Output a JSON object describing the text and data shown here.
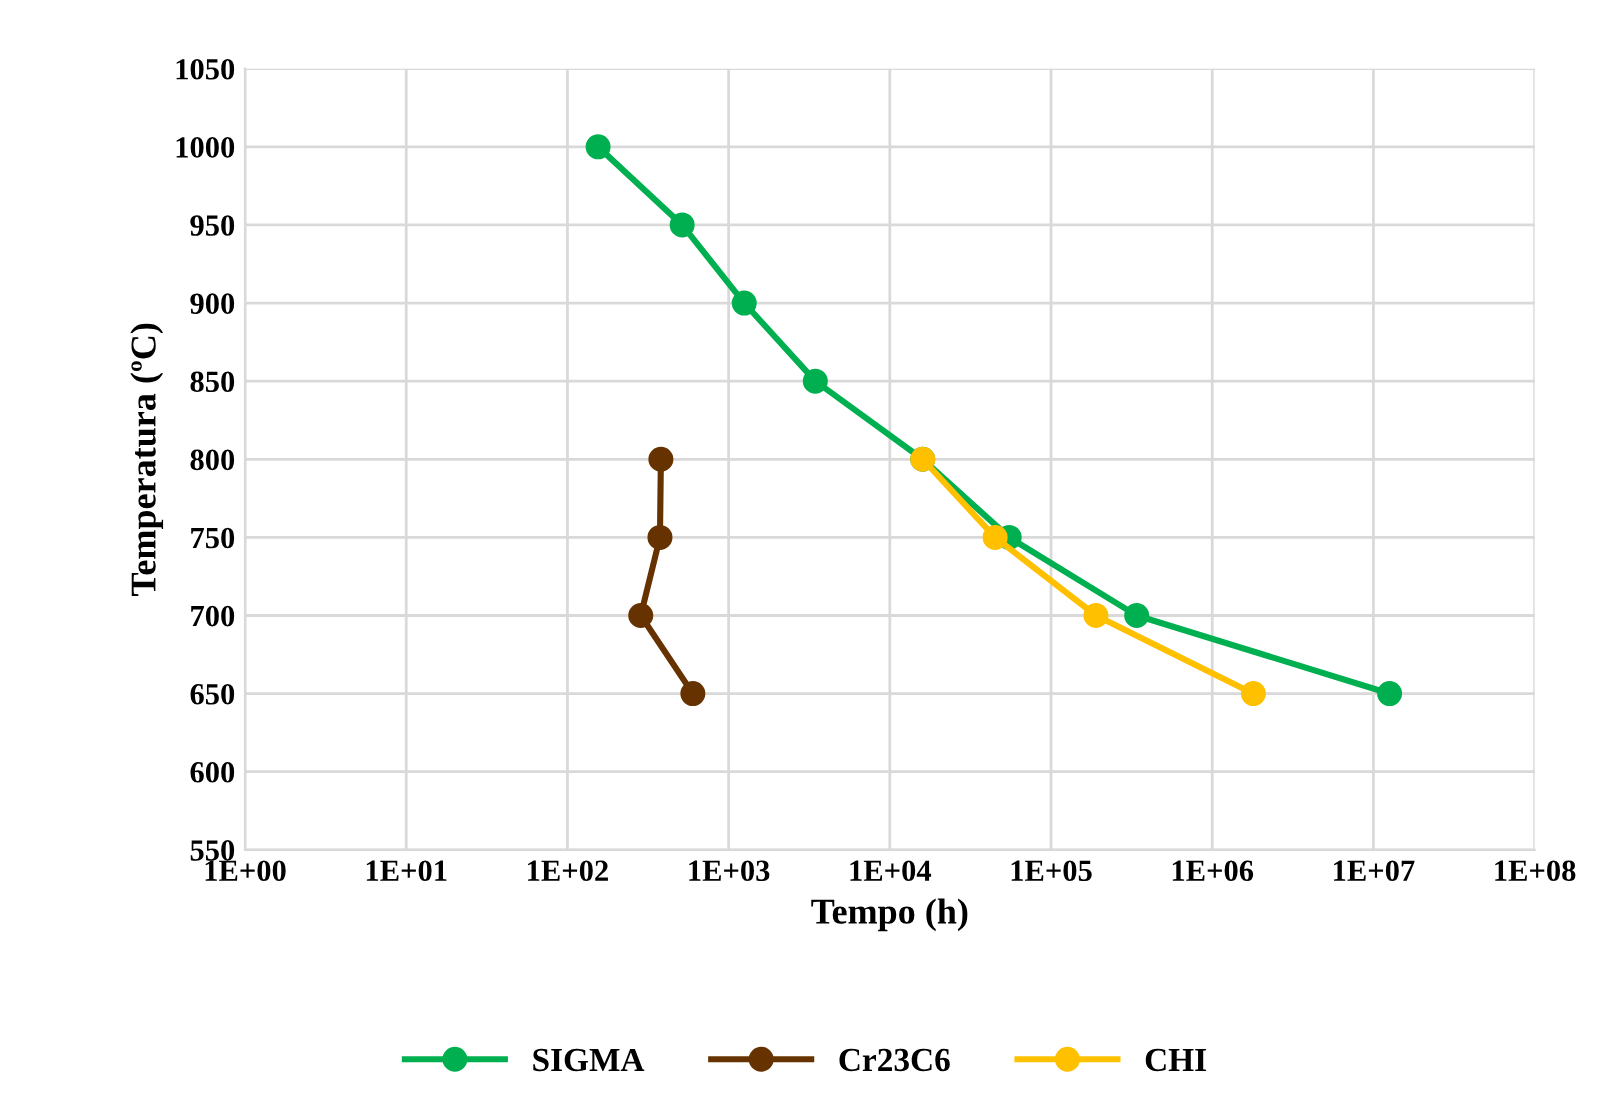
{
  "chart_data": {
    "type": "line",
    "xlabel": "Tempo (h)",
    "ylabel": "Temperatura (ºC)",
    "log": "x",
    "xlim": [
      1,
      100000000
    ],
    "ylim": [
      550,
      1050
    ],
    "xticks": [
      {
        "value": 1,
        "label": "1E+00"
      },
      {
        "value": 10,
        "label": "1E+01"
      },
      {
        "value": 100,
        "label": "1E+02"
      },
      {
        "value": 1000,
        "label": "1E+03"
      },
      {
        "value": 10000,
        "label": "1E+04"
      },
      {
        "value": 100000,
        "label": "1E+05"
      },
      {
        "value": 1000000,
        "label": "1E+06"
      },
      {
        "value": 10000000,
        "label": "1E+07"
      },
      {
        "value": 100000000,
        "label": "1E+08"
      }
    ],
    "yticks": [
      550,
      600,
      650,
      700,
      750,
      800,
      850,
      900,
      950,
      1000,
      1050
    ],
    "grid": true,
    "legend": "bottom",
    "marker": "circle",
    "line_style": "solid",
    "series": [
      {
        "name": "SIGMA",
        "color": "#00b050",
        "x": [
          155,
          515,
          1250,
          3450,
          16000,
          55000,
          340000,
          12600000
        ],
        "values": [
          1000,
          950,
          900,
          850,
          800,
          750,
          700,
          650
        ]
      },
      {
        "name": "Cr23C6",
        "color": "#663300",
        "x": [
          380,
          375,
          285,
          600
        ],
        "values": [
          800,
          750,
          700,
          650
        ]
      },
      {
        "name": "CHI",
        "color": "#ffc000",
        "x": [
          16000,
          45000,
          190000,
          1800000
        ],
        "values": [
          800,
          750,
          700,
          650
        ]
      }
    ]
  }
}
